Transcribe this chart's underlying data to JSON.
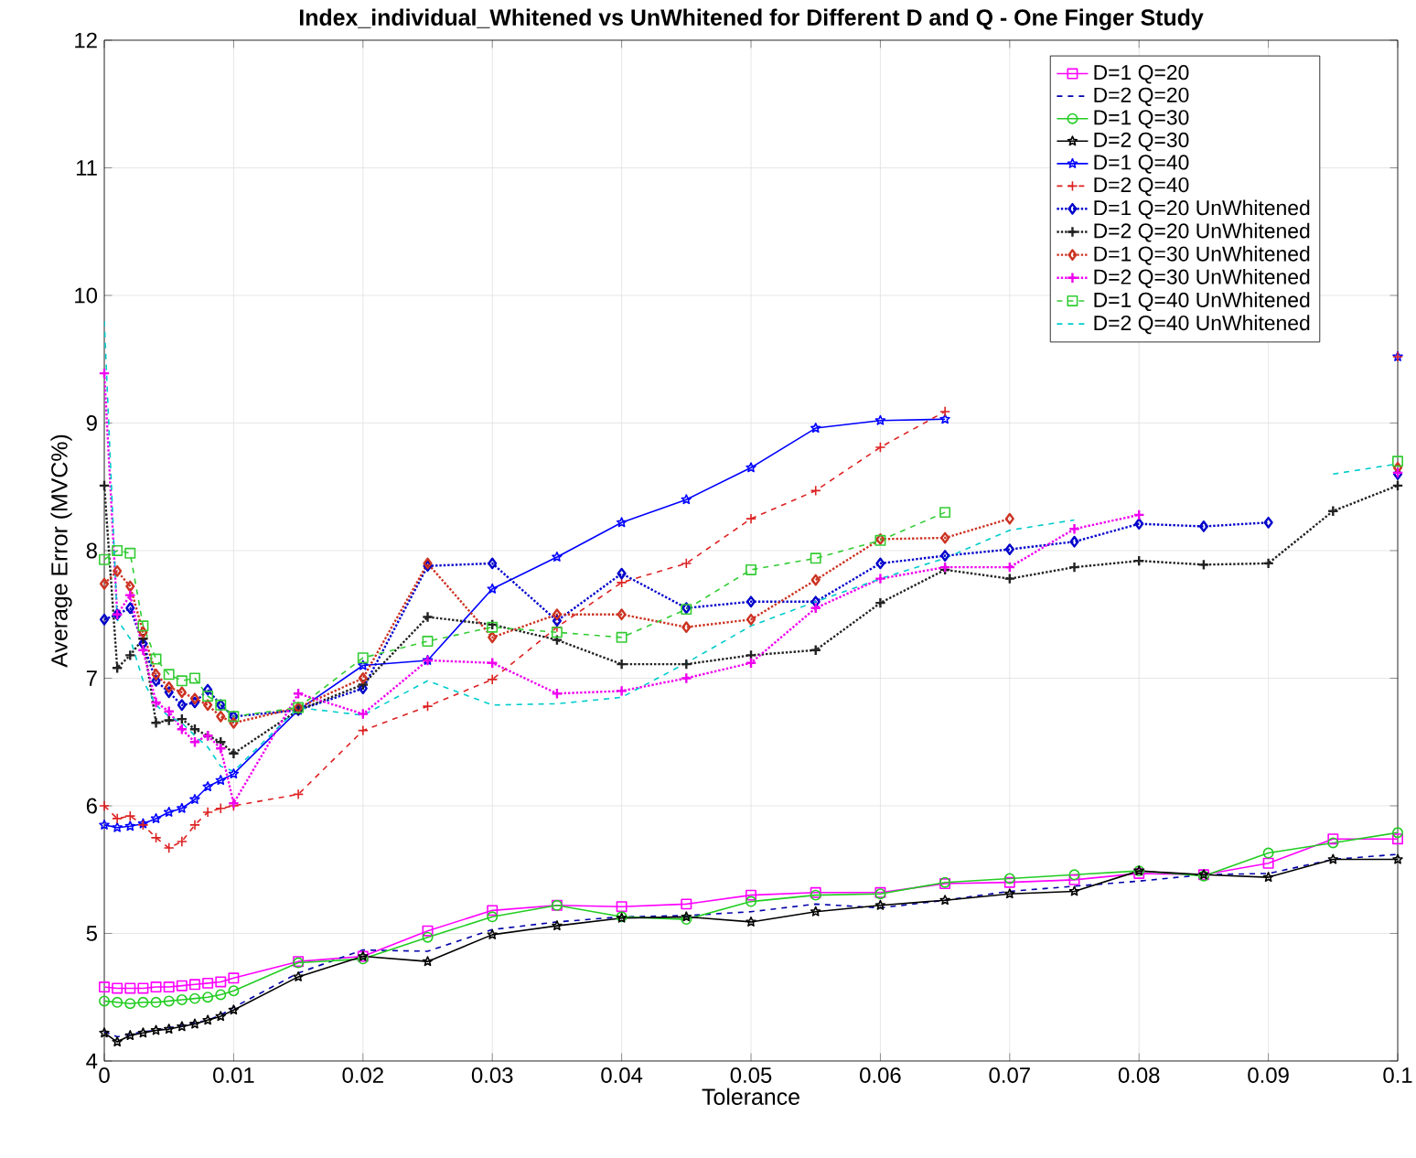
{
  "chart_data": {
    "type": "line",
    "title": "Index_individual_Whitened vs UnWhitened for Different D and Q - One Finger Study",
    "xlabel": "Tolerance",
    "ylabel": "Average Error (MVC%)",
    "x": [
      0,
      0.001,
      0.002,
      0.003,
      0.004,
      0.005,
      0.006,
      0.007,
      0.008,
      0.009,
      0.01,
      0.015,
      0.02,
      0.025,
      0.03,
      0.035,
      0.04,
      0.045,
      0.05,
      0.055,
      0.06,
      0.065,
      0.07,
      0.075,
      0.08,
      0.085,
      0.09,
      0.095,
      0.1
    ],
    "xlim": [
      0,
      0.1
    ],
    "xticks": [
      0,
      0.01,
      0.02,
      0.03,
      0.04,
      0.05,
      0.06,
      0.07,
      0.08,
      0.09,
      0.1
    ],
    "ylim": [
      4,
      12
    ],
    "yticks": [
      4,
      5,
      6,
      7,
      8,
      9,
      10,
      11,
      12
    ],
    "grid": true,
    "legend": "top right",
    "series": [
      {
        "name": "D=1 Q=20",
        "color": "#ff00ff",
        "marker": "square",
        "line_style": "solid",
        "values": [
          4.58,
          4.57,
          4.57,
          4.57,
          4.58,
          4.58,
          4.59,
          4.6,
          4.61,
          4.62,
          4.65,
          4.78,
          4.82,
          5.02,
          5.18,
          5.22,
          5.21,
          5.23,
          5.3,
          5.32,
          5.32,
          5.39,
          5.4,
          5.42,
          5.47,
          5.46,
          5.55,
          5.74,
          5.74
        ]
      },
      {
        "name": "D=2 Q=20",
        "color": "#0000aa",
        "marker": "none",
        "line_style": "dashed",
        "values": [
          4.23,
          4.19,
          4.21,
          4.23,
          4.24,
          4.26,
          4.28,
          4.3,
          4.32,
          4.36,
          4.42,
          4.69,
          4.87,
          4.86,
          5.03,
          5.09,
          5.13,
          5.14,
          5.17,
          5.23,
          5.2,
          5.26,
          5.33,
          5.37,
          5.41,
          5.46,
          5.47,
          5.58,
          5.62
        ]
      },
      {
        "name": "D=1 Q=30",
        "color": "#22cc22",
        "marker": "circle",
        "line_style": "solid",
        "values": [
          4.47,
          4.46,
          4.45,
          4.46,
          4.46,
          4.47,
          4.48,
          4.49,
          4.5,
          4.52,
          4.55,
          4.77,
          4.8,
          4.97,
          5.13,
          5.22,
          5.13,
          5.11,
          5.25,
          5.3,
          5.31,
          5.4,
          5.43,
          5.46,
          5.49,
          5.45,
          5.63,
          5.71,
          5.79
        ]
      },
      {
        "name": "D=2 Q=30",
        "color": "#000000",
        "marker": "star",
        "line_style": "solid",
        "values": [
          4.22,
          4.15,
          4.2,
          4.22,
          4.24,
          4.25,
          4.27,
          4.29,
          4.32,
          4.35,
          4.4,
          4.66,
          4.82,
          4.78,
          4.99,
          5.06,
          5.12,
          5.13,
          5.09,
          5.17,
          5.22,
          5.26,
          5.31,
          5.33,
          5.49,
          5.46,
          5.44,
          5.58,
          5.58
        ]
      },
      {
        "name": "D=1 Q=40",
        "color": "#0000ff",
        "marker": "star",
        "line_style": "solid",
        "values": [
          5.85,
          5.83,
          5.84,
          5.86,
          5.9,
          5.95,
          5.98,
          6.05,
          6.15,
          6.2,
          6.25,
          6.75,
          7.1,
          7.14,
          7.7,
          7.95,
          8.22,
          8.4,
          8.65,
          8.96,
          9.02,
          9.03,
          null,
          null,
          null,
          null,
          null,
          null,
          9.52
        ]
      },
      {
        "name": "D=2 Q=40",
        "color": "#dd2222",
        "marker": "cross",
        "line_style": "dashed",
        "values": [
          6.0,
          5.9,
          5.92,
          5.85,
          5.75,
          5.67,
          5.72,
          5.85,
          5.95,
          5.98,
          6.0,
          6.09,
          6.59,
          6.78,
          6.99,
          7.4,
          7.75,
          7.9,
          8.25,
          8.47,
          8.81,
          9.09,
          null,
          null,
          null,
          null,
          null,
          null,
          9.52
        ]
      },
      {
        "name": "D=1 Q=20 UnWhitened",
        "color": "#0000cc",
        "marker": "diamond",
        "line_style": "dotted",
        "values": [
          7.46,
          7.5,
          7.55,
          7.27,
          6.98,
          6.89,
          6.79,
          6.81,
          6.91,
          6.79,
          6.7,
          6.75,
          6.92,
          7.88,
          7.9,
          7.45,
          7.82,
          7.55,
          7.6,
          7.6,
          7.9,
          7.96,
          8.01,
          8.07,
          8.21,
          8.19,
          8.22,
          null,
          8.6
        ]
      },
      {
        "name": "D=2 Q=20 UnWhitened",
        "color": "#222222",
        "marker": "cross",
        "line_style": "dotted",
        "values": [
          8.51,
          7.08,
          7.18,
          7.31,
          6.65,
          6.67,
          6.68,
          6.6,
          6.55,
          6.5,
          6.41,
          6.75,
          6.95,
          7.48,
          7.42,
          7.3,
          7.11,
          7.11,
          7.18,
          7.22,
          7.59,
          7.85,
          7.78,
          7.87,
          7.92,
          7.89,
          7.9,
          8.31,
          8.51
        ]
      },
      {
        "name": "D=1 Q=30 UnWhitened",
        "color": "#cc3322",
        "marker": "diamond",
        "line_style": "dotted",
        "values": [
          7.74,
          7.84,
          7.72,
          7.36,
          7.03,
          6.93,
          6.89,
          6.84,
          6.79,
          6.7,
          6.65,
          6.77,
          7.0,
          7.9,
          7.32,
          7.5,
          7.5,
          7.4,
          7.46,
          7.77,
          8.09,
          8.1,
          8.25,
          null,
          null,
          null,
          null,
          null,
          8.65
        ]
      },
      {
        "name": "D=2 Q=30 UnWhitened",
        "color": "#ee00ee",
        "marker": "cross",
        "line_style": "dotted",
        "values": [
          9.39,
          7.5,
          7.65,
          7.22,
          6.81,
          6.74,
          6.6,
          6.5,
          6.55,
          6.45,
          6.02,
          6.88,
          6.72,
          7.14,
          7.12,
          6.88,
          6.9,
          7.0,
          7.12,
          7.55,
          7.78,
          7.87,
          7.87,
          8.17,
          8.28,
          null,
          null,
          null,
          8.61
        ]
      },
      {
        "name": "D=1 Q=40 UnWhitened",
        "color": "#33cc33",
        "marker": "square",
        "line_style": "dashed",
        "values": [
          7.93,
          8.0,
          7.98,
          7.41,
          7.15,
          7.03,
          6.98,
          7.0,
          6.86,
          6.79,
          6.7,
          6.77,
          7.16,
          7.29,
          7.4,
          7.36,
          7.32,
          7.54,
          7.85,
          7.94,
          8.08,
          8.3,
          null,
          null,
          null,
          null,
          null,
          null,
          8.7
        ]
      },
      {
        "name": "D=2 Q=40 UnWhitened",
        "color": "#00cccc",
        "marker": "none",
        "line_style": "dashed",
        "values": [
          9.8,
          7.46,
          7.31,
          6.98,
          6.79,
          6.7,
          6.65,
          6.55,
          6.46,
          6.31,
          6.27,
          6.77,
          6.71,
          6.98,
          6.79,
          6.8,
          6.85,
          7.12,
          7.41,
          7.6,
          7.78,
          7.94,
          8.16,
          8.24,
          null,
          null,
          null,
          8.6,
          8.68
        ]
      }
    ]
  }
}
